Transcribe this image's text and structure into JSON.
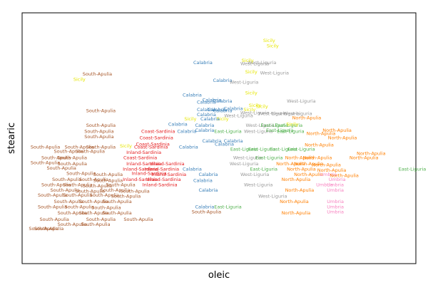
{
  "chart_data": {
    "type": "scatter",
    "xlabel": "oleic",
    "ylabel": "stearic",
    "grid": false,
    "legend": "none",
    "xlim": [
      6300,
      8500
    ],
    "ylim": [
      140,
      380
    ],
    "colors": {
      "South-Apulia": "#a65628",
      "Calabria": "#377eb8",
      "Sicily": "#e6e600",
      "North-Apulia": "#ff7f00",
      "West-Liguria": "#999999",
      "East-Liguria": "#4daf4a",
      "Coast-Sardinia": "#e41a1c",
      "Inland-Sardinia": "#e41a1c",
      "Umbria": "#f781bf",
      "Other": "#984ea3"
    },
    "points": [
      {
        "label": "Sicily",
        "x": 7700,
        "y": 347
      },
      {
        "label": "Sicily",
        "x": 7680,
        "y": 352
      },
      {
        "label": "Calabria",
        "x": 7310,
        "y": 331
      },
      {
        "label": "West-Liguria",
        "x": 7600,
        "y": 330
      },
      {
        "label": "West-Liguria",
        "x": 7640,
        "y": 331
      },
      {
        "label": "Sicily",
        "x": 7560,
        "y": 333
      },
      {
        "label": "South-Apulia",
        "x": 6720,
        "y": 320
      },
      {
        "label": "Sicily",
        "x": 6620,
        "y": 315
      },
      {
        "label": "Calabria",
        "x": 7420,
        "y": 314
      },
      {
        "label": "West-Liguria",
        "x": 7540,
        "y": 312
      },
      {
        "label": "West-Liguria",
        "x": 7710,
        "y": 321
      },
      {
        "label": "Sicily",
        "x": 7580,
        "y": 322
      },
      {
        "label": "Calabria",
        "x": 7250,
        "y": 300
      },
      {
        "label": "Sicily",
        "x": 7580,
        "y": 302
      },
      {
        "label": "West-Liguria",
        "x": 7860,
        "y": 294
      },
      {
        "label": "Calabria",
        "x": 7360,
        "y": 295
      },
      {
        "label": "Calabria",
        "x": 7420,
        "y": 294
      },
      {
        "label": "Calabria",
        "x": 7330,
        "y": 293
      },
      {
        "label": "Sicily",
        "x": 7600,
        "y": 290
      },
      {
        "label": "Calabria",
        "x": 7480,
        "y": 287
      },
      {
        "label": "Calabria",
        "x": 7390,
        "y": 286
      },
      {
        "label": "South-Apulia",
        "x": 6740,
        "y": 285
      },
      {
        "label": "Calabria",
        "x": 7330,
        "y": 286
      },
      {
        "label": "Calabria",
        "x": 7420,
        "y": 285
      },
      {
        "label": "Sicily",
        "x": 7570,
        "y": 286
      },
      {
        "label": "Sicily",
        "x": 7640,
        "y": 289
      },
      {
        "label": "West-Liguria",
        "x": 7600,
        "y": 283
      },
      {
        "label": "West-Liguria",
        "x": 7700,
        "y": 282
      },
      {
        "label": "West-Liguria",
        "x": 7770,
        "y": 282
      },
      {
        "label": "West-Liguria",
        "x": 7840,
        "y": 282
      },
      {
        "label": "Calabria",
        "x": 7330,
        "y": 281
      },
      {
        "label": "West-Liguria",
        "x": 7510,
        "y": 280
      },
      {
        "label": "Sicily",
        "x": 7420,
        "y": 277
      },
      {
        "label": "North-Apulia",
        "x": 7890,
        "y": 278
      },
      {
        "label": "Calabria",
        "x": 7350,
        "y": 277
      },
      {
        "label": "Sicily",
        "x": 7240,
        "y": 277
      },
      {
        "label": "South-Apulia",
        "x": 6740,
        "y": 271
      },
      {
        "label": "Calabria",
        "x": 7170,
        "y": 272
      },
      {
        "label": "Calabria",
        "x": 7320,
        "y": 271
      },
      {
        "label": "West-Liguria",
        "x": 7630,
        "y": 271
      },
      {
        "label": "East-Liguria",
        "x": 7710,
        "y": 271
      },
      {
        "label": "East-Liguria",
        "x": 7790,
        "y": 271
      },
      {
        "label": "Sicily",
        "x": 7810,
        "y": 272
      },
      {
        "label": "South-Apulia",
        "x": 6730,
        "y": 265
      },
      {
        "label": "Coast-Sardinia",
        "x": 7060,
        "y": 265
      },
      {
        "label": "Calabria",
        "x": 7220,
        "y": 265
      },
      {
        "label": "Calabria",
        "x": 7320,
        "y": 266
      },
      {
        "label": "East-Liguria",
        "x": 7450,
        "y": 265
      },
      {
        "label": "West-Liguria",
        "x": 7620,
        "y": 265
      },
      {
        "label": "East-Liguria",
        "x": 7740,
        "y": 266
      },
      {
        "label": "East-Liguria",
        "x": 7800,
        "y": 265
      },
      {
        "label": "North-Apulia",
        "x": 7970,
        "y": 263
      },
      {
        "label": "North-Apulia",
        "x": 8060,
        "y": 266
      },
      {
        "label": "South-Apulia",
        "x": 6730,
        "y": 260
      },
      {
        "label": "Coast-Sardinia",
        "x": 7050,
        "y": 259
      },
      {
        "label": "Calabria",
        "x": 7360,
        "y": 256
      },
      {
        "label": "Calabria",
        "x": 7480,
        "y": 256
      },
      {
        "label": "Coast-Sardinia",
        "x": 7030,
        "y": 253
      },
      {
        "label": "Calabria",
        "x": 7430,
        "y": 253
      },
      {
        "label": "North-Apulia",
        "x": 7960,
        "y": 252
      },
      {
        "label": "North-Apulia",
        "x": 8090,
        "y": 259
      },
      {
        "label": "South-Apulia",
        "x": 6430,
        "y": 250
      },
      {
        "label": "South-Apulia",
        "x": 6620,
        "y": 250
      },
      {
        "label": "South-Apulia",
        "x": 6740,
        "y": 250
      },
      {
        "label": "Sicily",
        "x": 6880,
        "y": 251
      },
      {
        "label": "Coast-Sardinia",
        "x": 7020,
        "y": 250
      },
      {
        "label": "Calabria",
        "x": 7230,
        "y": 250
      },
      {
        "label": "East-Liguria",
        "x": 7540,
        "y": 248
      },
      {
        "label": "East-Liguria",
        "x": 7640,
        "y": 248
      },
      {
        "label": "East-Liguria",
        "x": 7760,
        "y": 248
      },
      {
        "label": "East-Liguria",
        "x": 7860,
        "y": 248
      },
      {
        "label": "South-Apulia",
        "x": 6560,
        "y": 246
      },
      {
        "label": "South-Apulia",
        "x": 6680,
        "y": 246
      },
      {
        "label": "Inland-Sardinia",
        "x": 6980,
        "y": 245
      },
      {
        "label": "North-Apulia",
        "x": 8250,
        "y": 244
      },
      {
        "label": "South-Apulia",
        "x": 6490,
        "y": 240
      },
      {
        "label": "South-Apulia",
        "x": 6580,
        "y": 240
      },
      {
        "label": "Coast-Sardinia",
        "x": 6960,
        "y": 240
      },
      {
        "label": "West-Liguria",
        "x": 7560,
        "y": 240
      },
      {
        "label": "East-Liguria",
        "x": 7680,
        "y": 240
      },
      {
        "label": "North-Apulia",
        "x": 7850,
        "y": 240
      },
      {
        "label": "North-Apulia",
        "x": 7950,
        "y": 240
      },
      {
        "label": "North-Apulia",
        "x": 8210,
        "y": 240
      },
      {
        "label": "South-Apulia",
        "x": 6430,
        "y": 235
      },
      {
        "label": "South-Apulia",
        "x": 6580,
        "y": 234
      },
      {
        "label": "Inland-Sardinia",
        "x": 6980,
        "y": 234
      },
      {
        "label": "Inland-Sardinia",
        "x": 7110,
        "y": 234
      },
      {
        "label": "West-Liguria",
        "x": 7540,
        "y": 234
      },
      {
        "label": "North-Apulia",
        "x": 7800,
        "y": 234
      },
      {
        "label": "North-Apulia",
        "x": 7900,
        "y": 234
      },
      {
        "label": "North-Apulia",
        "x": 8000,
        "y": 233
      },
      {
        "label": "South-Apulia",
        "x": 6520,
        "y": 230
      },
      {
        "label": "Inland-Sardinia",
        "x": 6960,
        "y": 229
      },
      {
        "label": "Inland-Sardinia",
        "x": 7080,
        "y": 229
      },
      {
        "label": "Calabria",
        "x": 7250,
        "y": 229
      },
      {
        "label": "East-Liguria",
        "x": 7650,
        "y": 229
      },
      {
        "label": "North-Apulia",
        "x": 7860,
        "y": 229
      },
      {
        "label": "North-Apulia",
        "x": 8030,
        "y": 228
      },
      {
        "label": "East-Liguria",
        "x": 8480,
        "y": 229
      },
      {
        "label": "South-Apulia",
        "x": 6630,
        "y": 225
      },
      {
        "label": "South-Apulia",
        "x": 6780,
        "y": 224
      },
      {
        "label": "Inland-Sardinia",
        "x": 7010,
        "y": 225
      },
      {
        "label": "Inland-Sardinia",
        "x": 7120,
        "y": 224
      },
      {
        "label": "Calabria",
        "x": 7340,
        "y": 224
      },
      {
        "label": "West-Liguria",
        "x": 7600,
        "y": 224
      },
      {
        "label": "North-Apulia",
        "x": 7900,
        "y": 224
      },
      {
        "label": "Umbria",
        "x": 8010,
        "y": 224
      },
      {
        "label": "North-Apulia",
        "x": 8100,
        "y": 223
      },
      {
        "label": "South-Apulia",
        "x": 6550,
        "y": 219
      },
      {
        "label": "South-Apulia",
        "x": 6700,
        "y": 219
      },
      {
        "label": "South-Apulia",
        "x": 6780,
        "y": 218
      },
      {
        "label": "Inland-Sardinia",
        "x": 6960,
        "y": 219
      },
      {
        "label": "Inland-Sardinia",
        "x": 7090,
        "y": 219
      },
      {
        "label": "Calabria",
        "x": 7310,
        "y": 218
      },
      {
        "label": "North-Apulia",
        "x": 7830,
        "y": 219
      },
      {
        "label": "Umbria",
        "x": 8060,
        "y": 219
      },
      {
        "label": "South-Apulia",
        "x": 6490,
        "y": 214
      },
      {
        "label": "South-Apulia",
        "x": 6610,
        "y": 214
      },
      {
        "label": "South-Apulia",
        "x": 6720,
        "y": 213
      },
      {
        "label": "South-Apulia",
        "x": 6850,
        "y": 214
      },
      {
        "label": "Inland-Sardinia",
        "x": 7070,
        "y": 214
      },
      {
        "label": "West-Liguria",
        "x": 7620,
        "y": 214
      },
      {
        "label": "Umbria",
        "x": 7990,
        "y": 214
      },
      {
        "label": "Umbria",
        "x": 8050,
        "y": 214
      },
      {
        "label": "South-Apulia",
        "x": 6540,
        "y": 209
      },
      {
        "label": "South-Apulia",
        "x": 6680,
        "y": 208
      },
      {
        "label": "South-Apulia",
        "x": 6820,
        "y": 209
      },
      {
        "label": "South-Apulia",
        "x": 6930,
        "y": 208
      },
      {
        "label": "Calabria",
        "x": 7340,
        "y": 209
      },
      {
        "label": "North-Apulia",
        "x": 7850,
        "y": 209
      },
      {
        "label": "Umbria",
        "x": 8050,
        "y": 209
      },
      {
        "label": "South-Apulia",
        "x": 6470,
        "y": 204
      },
      {
        "label": "South-Apulia",
        "x": 6610,
        "y": 204
      },
      {
        "label": "South-Apulia",
        "x": 6760,
        "y": 204
      },
      {
        "label": "South-Apulia",
        "x": 6880,
        "y": 203
      },
      {
        "label": "West-Liguria",
        "x": 7700,
        "y": 203
      },
      {
        "label": "South-Apulia",
        "x": 6560,
        "y": 198
      },
      {
        "label": "South-Apulia",
        "x": 6700,
        "y": 198
      },
      {
        "label": "South-Apulia",
        "x": 6830,
        "y": 198
      },
      {
        "label": "North-Apulia",
        "x": 7820,
        "y": 198
      },
      {
        "label": "Umbria",
        "x": 8050,
        "y": 198
      },
      {
        "label": "South-Apulia",
        "x": 6470,
        "y": 193
      },
      {
        "label": "South-Apulia",
        "x": 6620,
        "y": 193
      },
      {
        "label": "South-Apulia",
        "x": 6770,
        "y": 192
      },
      {
        "label": "Calabria",
        "x": 7320,
        "y": 193
      },
      {
        "label": "East-Liguria",
        "x": 7450,
        "y": 193
      },
      {
        "label": "Umbria",
        "x": 8050,
        "y": 193
      },
      {
        "label": "South-Apulia",
        "x": 6580,
        "y": 187
      },
      {
        "label": "South-Apulia",
        "x": 6700,
        "y": 187
      },
      {
        "label": "South-Apulia",
        "x": 6830,
        "y": 187
      },
      {
        "label": "South-Apulia",
        "x": 7330,
        "y": 188
      },
      {
        "label": "North-Apulia",
        "x": 7830,
        "y": 187
      },
      {
        "label": "Umbria",
        "x": 8050,
        "y": 188
      },
      {
        "label": "South-Apulia",
        "x": 6480,
        "y": 181
      },
      {
        "label": "South-Apulia",
        "x": 6740,
        "y": 181
      },
      {
        "label": "South-Apulia",
        "x": 6950,
        "y": 181
      },
      {
        "label": "South-Apulia",
        "x": 6580,
        "y": 176
      },
      {
        "label": "South-Apulia",
        "x": 6710,
        "y": 176
      },
      {
        "label": "South-Apulia",
        "x": 6420,
        "y": 172
      },
      {
        "label": "South-Apulia",
        "x": 6450,
        "y": 172
      }
    ]
  }
}
